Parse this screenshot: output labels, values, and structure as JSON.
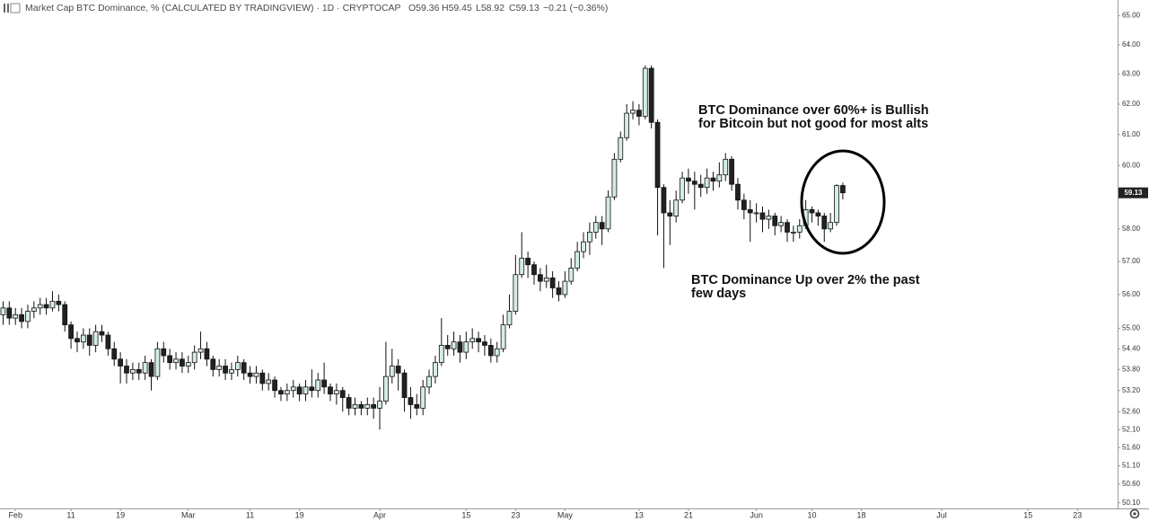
{
  "chart_data": {
    "type": "candlestick",
    "title": "Market Cap BTC Dominance, % (CALCULATED BY TRADINGVIEW) · 1D · CRYPTOCAP",
    "ohlc_labels": {
      "open": "O59.36",
      "high": "H59.45",
      "low": "L58.92",
      "close": "C59.13",
      "change": "−0.21 (−0.36%)"
    },
    "last_label": "59.13",
    "annotations": [
      {
        "lines": [
          "BTC Dominance over 60%+ is Bullish",
          "for Bitcoin but not good for most alts"
        ]
      },
      {
        "lines": [
          "BTC Dominance Up over 2% the past",
          "few days"
        ]
      }
    ],
    "up_color": "#d4ede2",
    "down_color": "#222222",
    "log_scale": true,
    "grid": false,
    "categories": [
      null,
      null,
      "Feb",
      null,
      null,
      null,
      null,
      null,
      null,
      null,
      null,
      "11",
      null,
      null,
      null,
      null,
      null,
      null,
      null,
      "19",
      null,
      null,
      null,
      null,
      null,
      null,
      null,
      null,
      null,
      null,
      "Mar",
      null,
      null,
      null,
      null,
      null,
      null,
      null,
      null,
      null,
      "11",
      null,
      null,
      null,
      null,
      null,
      null,
      null,
      "19",
      null,
      null,
      null,
      null,
      null,
      null,
      null,
      null,
      null,
      null,
      null,
      null,
      "Apr",
      null,
      null,
      null,
      null,
      null,
      null,
      null,
      null,
      null,
      null,
      null,
      null,
      null,
      "15",
      null,
      null,
      null,
      null,
      null,
      null,
      null,
      "23",
      null,
      null,
      null,
      null,
      null,
      null,
      null,
      "May",
      null,
      null,
      null,
      null,
      null,
      null,
      null,
      null,
      null,
      null,
      null,
      "13",
      null,
      null,
      null,
      null,
      null,
      null,
      null,
      "21",
      null,
      null,
      null,
      null,
      null,
      null,
      null,
      null,
      null,
      null,
      "Jun",
      null,
      null,
      null,
      null,
      null,
      null,
      null,
      null,
      "10",
      null,
      null,
      null,
      null,
      null,
      null,
      null,
      "18",
      null,
      null,
      null,
      null,
      null,
      null,
      null,
      null,
      null,
      null,
      null,
      null,
      "Jul",
      null,
      null,
      null,
      null,
      null,
      null,
      null,
      null,
      null,
      null,
      null,
      null,
      null,
      "15",
      null,
      null,
      null,
      null,
      null,
      null,
      null,
      "23",
      null,
      null,
      null,
      null,
      null,
      null
    ],
    "open": [
      55.4,
      55.6,
      55.3,
      55.4,
      55.2,
      55.5,
      55.6,
      55.7,
      55.6,
      55.8,
      55.7,
      55.1,
      54.7,
      54.6,
      54.8,
      54.5,
      54.9,
      54.8,
      54.4,
      54.1,
      53.9,
      53.7,
      53.8,
      53.7,
      54.0,
      53.6,
      54.4,
      54.2,
      54.0,
      54.1,
      53.9,
      54.0,
      54.3,
      54.4,
      54.1,
      53.8,
      53.9,
      53.7,
      53.8,
      54.0,
      53.7,
      53.6,
      53.7,
      53.4,
      53.5,
      53.2,
      53.1,
      53.2,
      53.3,
      53.1,
      53.3,
      53.2,
      53.5,
      53.3,
      53.1,
      53.2,
      53.0,
      52.7,
      52.8,
      52.7,
      52.8,
      52.7,
      52.9,
      53.6,
      53.9,
      53.7,
      53.0,
      52.8,
      52.7,
      53.3,
      53.6,
      54.0,
      54.5,
      54.4,
      54.6,
      54.3,
      54.6,
      54.7,
      54.6,
      54.5,
      54.2,
      54.4,
      55.1,
      55.5,
      56.6,
      57.1,
      56.9,
      56.6,
      56.4,
      56.5,
      56.2,
      56.0,
      56.4,
      56.8,
      57.3,
      57.6,
      57.9,
      58.2,
      58.0,
      59.0,
      60.2,
      60.9,
      61.7,
      61.8,
      61.6,
      63.2,
      61.4,
      59.3,
      58.5,
      58.4,
      58.9,
      59.6,
      59.5,
      59.4,
      59.3,
      59.6,
      59.5,
      59.7,
      60.2,
      59.4,
      58.9,
      58.6,
      58.5,
      58.5,
      58.3,
      58.4,
      58.1,
      58.2,
      57.9,
      57.9,
      58.1,
      58.6,
      58.5,
      58.4,
      58.0,
      58.2,
      59.36,
      null,
      null,
      null,
      null,
      null,
      null,
      null,
      null,
      null,
      null,
      null,
      null,
      null,
      null,
      null,
      null,
      null,
      null,
      null,
      null,
      null,
      null,
      null,
      null,
      null,
      null,
      null,
      null,
      null,
      null,
      null,
      null,
      null,
      null,
      null,
      null,
      null,
      null,
      null,
      null,
      null,
      null,
      null,
      null
    ],
    "high": [
      55.8,
      55.8,
      55.6,
      55.6,
      55.7,
      55.8,
      55.9,
      55.9,
      56.1,
      56.0,
      55.8,
      55.2,
      54.9,
      55.0,
      55.0,
      55.1,
      55.1,
      54.9,
      54.6,
      54.3,
      54.1,
      54.0,
      54.0,
      54.2,
      54.1,
      54.6,
      54.6,
      54.4,
      54.3,
      54.3,
      54.2,
      54.5,
      54.9,
      54.6,
      54.2,
      54.1,
      54.1,
      54.0,
      54.2,
      54.1,
      53.9,
      53.9,
      53.8,
      53.7,
      53.6,
      53.3,
      53.4,
      53.5,
      53.4,
      53.5,
      53.8,
      53.7,
      54.0,
      53.4,
      53.4,
      53.3,
      53.1,
      53.0,
      52.9,
      53.0,
      53.0,
      53.3,
      54.6,
      54.4,
      54.1,
      53.8,
      53.3,
      53.1,
      53.5,
      53.8,
      54.2,
      55.3,
      54.8,
      54.9,
      54.8,
      54.9,
      55.0,
      54.9,
      54.8,
      54.7,
      54.6,
      55.4,
      56.0,
      57.2,
      57.9,
      57.3,
      57.0,
      56.8,
      56.9,
      56.7,
      56.4,
      56.7,
      57.1,
      57.6,
      57.9,
      58.2,
      58.4,
      58.4,
      59.2,
      60.4,
      61.1,
      62.0,
      62.1,
      62.0,
      63.3,
      63.3,
      61.5,
      59.4,
      58.9,
      59.2,
      59.8,
      59.9,
      59.8,
      59.7,
      59.9,
      59.8,
      60.1,
      60.4,
      60.3,
      59.6,
      59.1,
      58.9,
      58.8,
      58.7,
      58.6,
      58.5,
      58.4,
      58.3,
      58.1,
      58.3,
      58.9,
      58.7,
      58.6,
      58.5,
      58.5,
      59.4,
      59.45,
      null,
      null,
      null,
      null,
      null,
      null,
      null,
      null,
      null,
      null,
      null,
      null,
      null,
      null,
      null,
      null,
      null,
      null,
      null,
      null,
      null,
      null,
      null,
      null,
      null,
      null,
      null,
      null,
      null,
      null,
      null,
      null,
      null,
      null,
      null,
      null,
      null,
      null,
      null,
      null,
      null,
      null,
      null,
      null
    ],
    "low": [
      55.1,
      55.1,
      55.1,
      55.0,
      55.0,
      55.3,
      55.4,
      55.4,
      55.5,
      55.5,
      54.9,
      54.4,
      54.3,
      54.4,
      54.2,
      54.3,
      54.6,
      54.2,
      53.9,
      53.4,
      53.4,
      53.5,
      53.5,
      53.5,
      53.2,
      53.5,
      54.0,
      53.8,
      53.8,
      53.7,
      53.7,
      53.8,
      54.1,
      53.9,
      53.6,
      53.6,
      53.5,
      53.5,
      53.6,
      53.5,
      53.4,
      53.4,
      53.2,
      53.2,
      53.0,
      52.9,
      52.9,
      53.0,
      52.9,
      52.9,
      53.0,
      53.0,
      53.1,
      52.9,
      52.8,
      52.6,
      52.5,
      52.5,
      52.5,
      52.5,
      52.4,
      52.1,
      52.8,
      53.4,
      53.2,
      52.6,
      52.4,
      52.5,
      52.5,
      53.1,
      53.4,
      53.9,
      54.2,
      54.2,
      54.0,
      54.1,
      54.4,
      54.3,
      54.2,
      54.0,
      54.0,
      54.3,
      55.0,
      55.4,
      56.5,
      56.5,
      56.3,
      56.1,
      56.2,
      55.9,
      55.8,
      55.9,
      56.3,
      56.7,
      57.1,
      57.2,
      57.7,
      57.5,
      57.9,
      58.9,
      60.1,
      60.8,
      61.5,
      61.3,
      61.5,
      61.2,
      57.8,
      56.8,
      57.5,
      58.2,
      58.8,
      59.1,
      58.6,
      59.0,
      59.1,
      59.2,
      59.3,
      59.5,
      59.2,
      58.6,
      58.3,
      57.6,
      58.2,
      57.9,
      58.0,
      57.8,
      57.9,
      57.6,
      57.6,
      57.7,
      58.0,
      58.2,
      58.1,
      57.6,
      57.9,
      58.1,
      58.92,
      null,
      null,
      null,
      null,
      null,
      null,
      null,
      null,
      null,
      null,
      null,
      null,
      null,
      null,
      null,
      null,
      null,
      null,
      null,
      null,
      null,
      null,
      null,
      null,
      null,
      null,
      null,
      null,
      null,
      null,
      null,
      null,
      null,
      null,
      null,
      null,
      null,
      null,
      null,
      null,
      null,
      null,
      null,
      null
    ],
    "close": [
      55.6,
      55.3,
      55.4,
      55.2,
      55.5,
      55.6,
      55.7,
      55.6,
      55.8,
      55.7,
      55.1,
      54.7,
      54.6,
      54.8,
      54.5,
      54.9,
      54.8,
      54.4,
      54.1,
      53.9,
      53.7,
      53.8,
      53.7,
      54.0,
      53.6,
      54.4,
      54.2,
      54.0,
      54.1,
      53.9,
      54.0,
      54.3,
      54.4,
      54.1,
      53.8,
      53.9,
      53.7,
      53.8,
      54.0,
      53.7,
      53.6,
      53.7,
      53.4,
      53.5,
      53.2,
      53.1,
      53.2,
      53.3,
      53.1,
      53.3,
      53.2,
      53.5,
      53.3,
      53.1,
      53.2,
      53.0,
      52.7,
      52.8,
      52.7,
      52.8,
      52.7,
      52.9,
      53.6,
      53.9,
      53.7,
      53.0,
      52.8,
      52.7,
      53.3,
      53.6,
      54.0,
      54.5,
      54.4,
      54.6,
      54.3,
      54.6,
      54.7,
      54.6,
      54.5,
      54.2,
      54.4,
      55.1,
      55.5,
      56.6,
      57.1,
      56.9,
      56.6,
      56.4,
      56.5,
      56.2,
      56.0,
      56.4,
      56.8,
      57.3,
      57.6,
      57.9,
      58.2,
      58.0,
      59.0,
      60.2,
      60.9,
      61.7,
      61.8,
      61.6,
      63.2,
      61.4,
      59.3,
      58.5,
      58.4,
      58.9,
      59.6,
      59.5,
      59.4,
      59.3,
      59.6,
      59.5,
      59.7,
      60.2,
      59.4,
      58.9,
      58.6,
      58.5,
      58.5,
      58.3,
      58.4,
      58.1,
      58.2,
      57.9,
      57.9,
      58.1,
      58.6,
      58.5,
      58.4,
      58.0,
      58.2,
      59.36,
      59.13,
      null,
      null,
      null,
      null,
      null,
      null,
      null,
      null,
      null,
      null,
      null,
      null,
      null,
      null,
      null,
      null,
      null,
      null,
      null,
      null,
      null,
      null,
      null,
      null,
      null,
      null,
      null,
      null,
      null,
      null,
      null,
      null,
      null,
      null,
      null,
      null,
      null,
      null,
      null,
      null,
      null,
      null,
      null,
      null
    ],
    "ylim": [
      49.95,
      65.55
    ],
    "yticks": [
      {
        "value": 65,
        "label": "65.00"
      },
      {
        "value": 64,
        "label": "64.00"
      },
      {
        "value": 63,
        "label": "63.00"
      },
      {
        "value": 62,
        "label": "62.00"
      },
      {
        "value": 61,
        "label": "61.00"
      },
      {
        "value": 60,
        "label": "60.00"
      },
      {
        "value": 58,
        "label": "58.00"
      },
      {
        "value": 57,
        "label": "57.00"
      },
      {
        "value": 56,
        "label": "56.00"
      },
      {
        "value": 55,
        "label": "55.00"
      },
      {
        "value": 54.4,
        "label": "54.40"
      },
      {
        "value": 53.8,
        "label": "53.80"
      },
      {
        "value": 53.2,
        "label": "53.20"
      },
      {
        "value": 52.6,
        "label": "52.60"
      },
      {
        "value": 52.1,
        "label": "52.10"
      },
      {
        "value": 51.6,
        "label": "51.60"
      },
      {
        "value": 51.1,
        "label": "51.10"
      },
      {
        "value": 50.6,
        "label": "50.60"
      },
      {
        "value": 50.1,
        "label": "50.10"
      }
    ]
  }
}
